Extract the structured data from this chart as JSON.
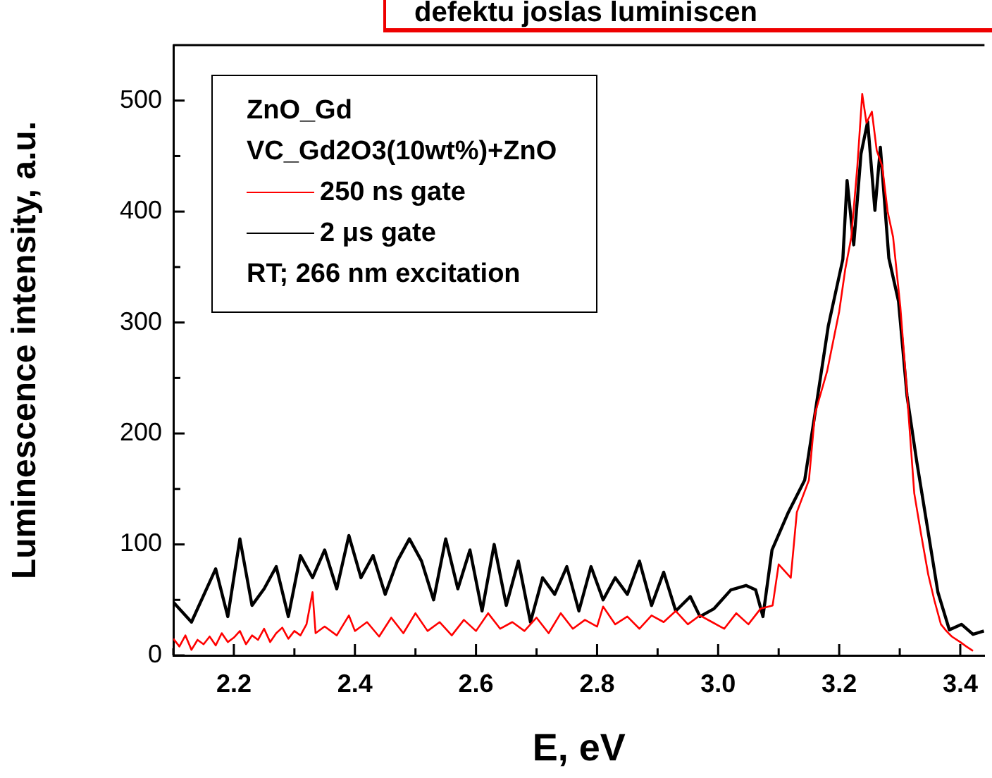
{
  "chart_data": {
    "type": "line",
    "title": "defektu joslas luminiscen",
    "xlabel": "E, eV",
    "ylabel": "Luminescence intensity, a.u.",
    "annotations": [
      "ZnO_Gd",
      "VC_Gd2O3(10wt%)+ZnO",
      "RT; 266 nm excitation"
    ],
    "xlim": [
      2.1,
      3.44
    ],
    "xticks": [
      {
        "value": 2.1,
        "label": null
      },
      2.2,
      {
        "value": 2.3,
        "label": null
      },
      2.4,
      {
        "value": 2.5,
        "label": null
      },
      2.6,
      {
        "value": 2.7,
        "label": null
      },
      2.8,
      {
        "value": 2.9,
        "label": null
      },
      {
        "value": 3.0,
        "label": "3.0"
      },
      {
        "value": 3.1,
        "label": null
      },
      3.2,
      {
        "value": 3.3,
        "label": null
      },
      3.4
    ],
    "ylim": [
      0,
      550
    ],
    "yticks": [
      0,
      {
        "value": 50,
        "label": null
      },
      100,
      {
        "value": 150,
        "label": null
      },
      200,
      {
        "value": 250,
        "label": null
      },
      300,
      {
        "value": 350,
        "label": null
      },
      400,
      {
        "value": 450,
        "label": null
      },
      500
    ],
    "grid": false,
    "legend": "top left",
    "marker": "none",
    "line_style": "solid",
    "series": [
      {
        "name": "250 ns gate",
        "color": "#ff0000",
        "x": [
          2.1,
          2.11,
          2.12,
          2.13,
          2.14,
          2.15,
          2.16,
          2.17,
          2.18,
          2.19,
          2.2,
          2.21,
          2.22,
          2.23,
          2.24,
          2.25,
          2.26,
          2.27,
          2.28,
          2.29,
          2.3,
          2.31,
          2.32,
          2.33,
          2.335,
          2.35,
          2.37,
          2.39,
          2.4,
          2.42,
          2.44,
          2.46,
          2.48,
          2.5,
          2.52,
          2.54,
          2.56,
          2.58,
          2.6,
          2.62,
          2.64,
          2.66,
          2.68,
          2.7,
          2.72,
          2.74,
          2.76,
          2.78,
          2.8,
          2.81,
          2.83,
          2.85,
          2.87,
          2.89,
          2.91,
          2.93,
          2.95,
          2.97,
          2.99,
          3.01,
          3.03,
          3.05,
          3.07,
          3.09,
          3.1,
          3.12,
          3.13,
          3.15,
          3.16,
          3.18,
          3.2,
          3.21,
          3.22,
          3.23,
          3.238,
          3.245,
          3.254,
          3.262,
          3.271,
          3.28,
          3.289,
          3.301,
          3.31,
          3.324,
          3.335,
          3.347,
          3.357,
          3.368,
          3.377,
          3.386,
          3.4,
          3.41,
          3.421
        ],
        "values": [
          15,
          8,
          18,
          5,
          14,
          10,
          17,
          9,
          20,
          12,
          16,
          22,
          10,
          18,
          14,
          24,
          12,
          20,
          25,
          15,
          22,
          18,
          28,
          57,
          20,
          26,
          18,
          36,
          22,
          30,
          17,
          34,
          20,
          38,
          22,
          30,
          18,
          32,
          22,
          38,
          24,
          30,
          22,
          34,
          20,
          38,
          24,
          32,
          26,
          44,
          28,
          35,
          24,
          36,
          30,
          40,
          28,
          36,
          30,
          24,
          38,
          28,
          42,
          45,
          82,
          70,
          129,
          158,
          218,
          256,
          310,
          348,
          377,
          441,
          506,
          480,
          490,
          455,
          441,
          400,
          377,
          314,
          251,
          146,
          110,
          73,
          50,
          28,
          22,
          17,
          12,
          8,
          4
        ]
      },
      {
        "name": "2 μs gate",
        "color": "#000000",
        "x": [
          2.1,
          2.13,
          2.17,
          2.19,
          2.21,
          2.23,
          2.25,
          2.27,
          2.29,
          2.31,
          2.33,
          2.35,
          2.37,
          2.39,
          2.41,
          2.43,
          2.45,
          2.47,
          2.49,
          2.51,
          2.53,
          2.55,
          2.57,
          2.59,
          2.61,
          2.63,
          2.65,
          2.67,
          2.69,
          2.71,
          2.73,
          2.75,
          2.77,
          2.79,
          2.81,
          2.83,
          2.85,
          2.87,
          2.89,
          2.91,
          2.93,
          2.954,
          2.97,
          2.993,
          3.021,
          3.046,
          3.062,
          3.074,
          3.089,
          3.116,
          3.143,
          3.162,
          3.182,
          3.206,
          3.213,
          3.224,
          3.236,
          3.247,
          3.259,
          3.268,
          3.282,
          3.298,
          3.312,
          3.328,
          3.347,
          3.363,
          3.382,
          3.402,
          3.421,
          3.439
        ],
        "values": [
          48,
          30,
          78,
          35,
          105,
          45,
          60,
          80,
          35,
          90,
          70,
          95,
          60,
          108,
          70,
          90,
          55,
          85,
          105,
          85,
          50,
          105,
          60,
          95,
          40,
          100,
          45,
          85,
          30,
          70,
          55,
          80,
          40,
          80,
          50,
          70,
          55,
          85,
          45,
          75,
          40,
          53,
          35,
          42,
          59,
          63,
          59,
          35,
          95,
          129,
          158,
          225,
          297,
          357,
          428,
          370,
          452,
          481,
          401,
          458,
          358,
          319,
          234,
          175,
          111,
          57,
          23,
          28,
          19,
          22
        ]
      }
    ]
  }
}
